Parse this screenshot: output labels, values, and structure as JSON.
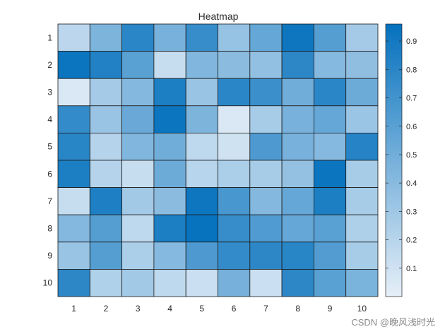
{
  "chart_data": {
    "type": "heatmap",
    "title": "Heatmap",
    "xlabel": "",
    "ylabel": "",
    "x_categories": [
      "1",
      "2",
      "3",
      "4",
      "5",
      "6",
      "7",
      "8",
      "9",
      "10"
    ],
    "y_categories": [
      "1",
      "2",
      "3",
      "4",
      "5",
      "6",
      "7",
      "8",
      "9",
      "10"
    ],
    "values": [
      [
        0.18,
        0.45,
        0.8,
        0.47,
        0.75,
        0.34,
        0.55,
        0.92,
        0.62,
        0.28
      ],
      [
        0.93,
        0.84,
        0.6,
        0.14,
        0.43,
        0.39,
        0.36,
        0.79,
        0.41,
        0.37
      ],
      [
        0.05,
        0.28,
        0.42,
        0.86,
        0.33,
        0.8,
        0.73,
        0.5,
        0.8,
        0.52
      ],
      [
        0.76,
        0.33,
        0.53,
        0.93,
        0.45,
        0.05,
        0.27,
        0.47,
        0.55,
        0.32
      ],
      [
        0.81,
        0.21,
        0.43,
        0.5,
        0.17,
        0.1,
        0.65,
        0.47,
        0.41,
        0.82
      ],
      [
        0.86,
        0.21,
        0.14,
        0.52,
        0.2,
        0.25,
        0.27,
        0.35,
        0.93,
        0.27
      ],
      [
        0.14,
        0.85,
        0.29,
        0.39,
        0.92,
        0.67,
        0.42,
        0.55,
        0.86,
        0.27
      ],
      [
        0.42,
        0.62,
        0.17,
        0.86,
        0.95,
        0.75,
        0.64,
        0.55,
        0.6,
        0.24
      ],
      [
        0.33,
        0.62,
        0.25,
        0.41,
        0.65,
        0.76,
        0.79,
        0.81,
        0.63,
        0.27
      ],
      [
        0.79,
        0.23,
        0.29,
        0.17,
        0.12,
        0.48,
        0.12,
        0.79,
        0.6,
        0.46
      ]
    ],
    "colorbar": {
      "min": 0.0,
      "max": 0.96,
      "ticks": [
        0.1,
        0.2,
        0.3,
        0.4,
        0.5,
        0.6,
        0.7,
        0.8,
        0.9
      ],
      "tick_labels": [
        "0.1",
        "0.2",
        "0.3",
        "0.4",
        "0.5",
        "0.6",
        "0.7",
        "0.8",
        "0.9"
      ],
      "colormap": {
        "low": "#e6eff8",
        "high": "#0571bd"
      }
    },
    "cell_border_color": "#1a1a1a",
    "grid": true
  },
  "watermark": "CSDN @晚风浅时光"
}
